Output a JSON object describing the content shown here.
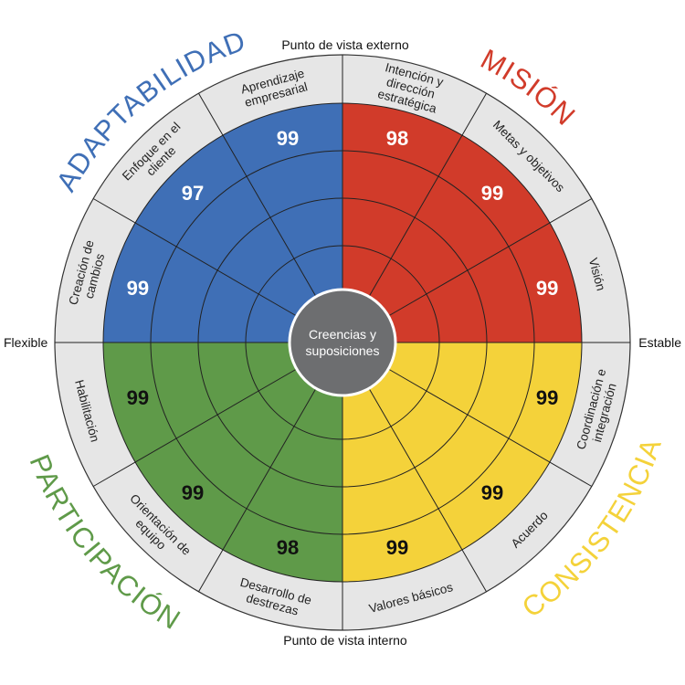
{
  "axes": {
    "top": "Punto de vista externo",
    "bottom": "Punto de vista interno",
    "left": "Flexible",
    "right": "Estable"
  },
  "center": {
    "line1": "Creencias y",
    "line2": "suposiciones"
  },
  "colors": {
    "adaptabilidad": "#3f6fb6",
    "mision": "#d13b2a",
    "consistencia": "#f4d23a",
    "participacion": "#5f9a49",
    "ring": "#e6e6e6",
    "center": "#6d6e70"
  },
  "traits": {
    "adaptabilidad": "ADAPTABILIDAD",
    "mision": "MISIÓN",
    "consistencia": "CONSISTENCIA",
    "participacion": "PARTICIPACIÓN"
  },
  "segments": [
    {
      "label_lines": [
        "Aprendizaje",
        "empresarial"
      ],
      "score": "99"
    },
    {
      "label_lines": [
        "Intención y",
        "dirección",
        "estratégica"
      ],
      "score": "98"
    },
    {
      "label_lines": [
        "Metas y objetivos"
      ],
      "score": "99"
    },
    {
      "label_lines": [
        "Visión"
      ],
      "score": "99"
    },
    {
      "label_lines": [
        "Coordinación e",
        "integración"
      ],
      "score": "99"
    },
    {
      "label_lines": [
        "Acuerdo"
      ],
      "score": "99"
    },
    {
      "label_lines": [
        "Valores básicos"
      ],
      "score": "99"
    },
    {
      "label_lines": [
        "Desarrollo de",
        "destrezas"
      ],
      "score": "98"
    },
    {
      "label_lines": [
        "Orientación de",
        "equipo"
      ],
      "score": "99"
    },
    {
      "label_lines": [
        "Habilitación"
      ],
      "score": "99"
    },
    {
      "label_lines": [
        "Creación de",
        "cambios"
      ],
      "score": "99"
    },
    {
      "label_lines": [
        "Enfoque en el",
        "cliente"
      ],
      "score": "97"
    }
  ]
}
